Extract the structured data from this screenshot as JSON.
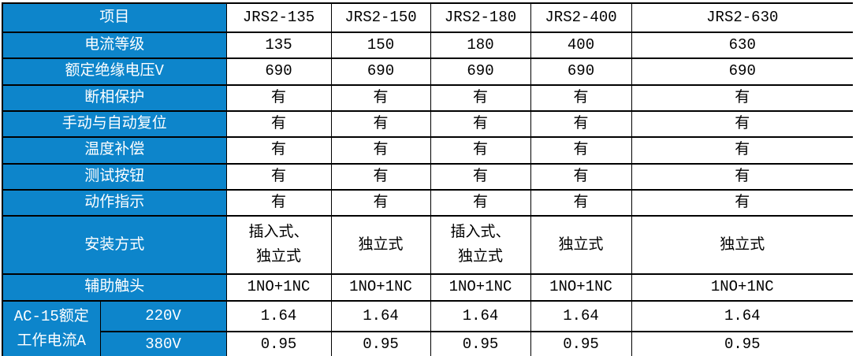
{
  "colors": {
    "header_blue": "#0D85CB",
    "border": "#000000",
    "header_text": "#FFFFFF",
    "body_text": "#000000",
    "background": "#FFFFFF"
  },
  "table": {
    "header": {
      "label": "项目",
      "models": [
        "JRS2-135",
        "JRS2-150",
        "JRS2-180",
        "JRS2-400",
        "JRS2-630"
      ]
    },
    "rows": [
      {
        "label": "电流等级",
        "values": [
          "135",
          "150",
          "180",
          "400",
          "630"
        ]
      },
      {
        "label": "额定绝缘电压V",
        "values": [
          "690",
          "690",
          "690",
          "690",
          "690"
        ]
      },
      {
        "label": "断相保护",
        "values": [
          "有",
          "有",
          "有",
          "有",
          "有"
        ]
      },
      {
        "label": "手动与自动复位",
        "values": [
          "有",
          "有",
          "有",
          "有",
          "有"
        ]
      },
      {
        "label": "温度补偿",
        "values": [
          "有",
          "有",
          "有",
          "有",
          "有"
        ]
      },
      {
        "label": "测试按钮",
        "values": [
          "有",
          "有",
          "有",
          "有",
          "有"
        ]
      },
      {
        "label": "动作指示",
        "values": [
          "有",
          "有",
          "有",
          "有",
          "有"
        ]
      },
      {
        "label": "安装方式",
        "values": [
          "插入式、\n独立式",
          "独立式",
          "插入式、\n独立式",
          "独立式",
          "独立式"
        ]
      },
      {
        "label": "辅助触头",
        "values": [
          "1NO+1NC",
          "1NO+1NC",
          "1NO+1NC",
          "1NO+1NC",
          "1NO+1NC"
        ]
      }
    ],
    "ac15": {
      "group_label": "AC-15额定\n工作电流A",
      "subrows": [
        {
          "label": "220V",
          "values": [
            "1.64",
            "1.64",
            "1.64",
            "1.64",
            "1.64"
          ]
        },
        {
          "label": "380V",
          "values": [
            "0.95",
            "0.95",
            "0.95",
            "0.95",
            "0.95"
          ]
        }
      ]
    }
  }
}
